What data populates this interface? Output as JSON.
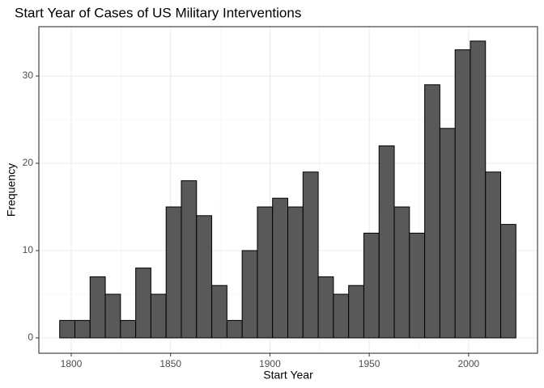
{
  "chart_data": {
    "type": "histogram",
    "title": "Start Year of Cases of US Military Interventions",
    "x_label": "Start Year",
    "y_label": "Frequency",
    "bins": [
      1794.17,
      1801.83,
      1809.48,
      1817.14,
      1824.79,
      1832.45,
      1840.1,
      1847.76,
      1855.41,
      1863.07,
      1870.72,
      1878.38,
      1886.03,
      1893.69,
      1901.34,
      1909.0,
      1916.66,
      1924.31,
      1931.97,
      1939.62,
      1947.28,
      1954.93,
      1962.59,
      1970.24,
      1977.9,
      1985.55,
      1993.21,
      2000.86,
      2008.52,
      2016.17,
      2023.83
    ],
    "values": [
      2,
      2,
      7,
      5,
      2,
      8,
      5,
      15,
      18,
      14,
      6,
      2,
      10,
      15,
      16,
      15,
      19,
      7,
      5,
      6,
      12,
      22,
      15,
      12,
      29,
      24,
      33,
      34,
      19,
      13
    ],
    "color": "#595959",
    "edge_color": "#000000",
    "xlim": [
      1783.7,
      2034.7
    ],
    "xticks": [
      1800,
      1850,
      1900,
      1950,
      2000
    ],
    "ylim": [
      -1.76,
      35.65
    ],
    "yticks": [
      0,
      10,
      20,
      30
    ],
    "grid": true
  }
}
